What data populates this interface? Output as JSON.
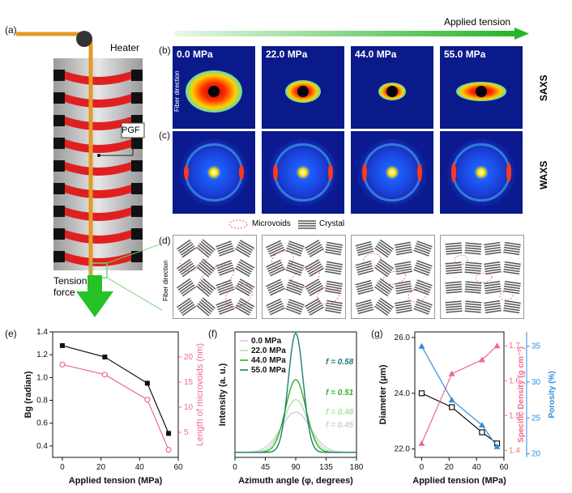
{
  "panels": {
    "a": "(a)",
    "b": "(b)",
    "c": "(c)",
    "d": "(d)",
    "e": "(e)",
    "f": "(f)",
    "g": "(g)"
  },
  "labels": {
    "heater": "Heater",
    "pgf": "PGF",
    "tension_force": "Tension\nforce",
    "applied_tension": "Applied tension",
    "saxs": "SAXS",
    "waxs": "WAXS",
    "fiber_direction": "Fiber direction",
    "microvoids": "Microvoids",
    "crystal": "Crystal"
  },
  "tensions": [
    "0.0 MPa",
    "22.0 MPa",
    "44.0 MPa",
    "55.0 MPa"
  ],
  "chart_data": [
    {
      "id": "e",
      "type": "line",
      "xlabel": "Applied tension (MPa)",
      "ylabel": "Bg (radian)",
      "ylabel_right": "Length of microvoids (nm)",
      "xlim": [
        -5,
        60
      ],
      "ylim": [
        0.3,
        1.4
      ],
      "ylim_right": [
        0,
        25
      ],
      "xticks": [
        "0",
        "20",
        "40",
        "60"
      ],
      "yticks": [
        "0.4",
        "0.6",
        "0.8",
        "1.0",
        "1.2",
        "1.4"
      ],
      "yticks_right": [
        "5",
        "10",
        "15",
        "20"
      ],
      "series": [
        {
          "axis": "left",
          "color": "#111111",
          "x": [
            0,
            22,
            44,
            55
          ],
          "y": [
            1.28,
            1.18,
            0.95,
            0.51
          ]
        },
        {
          "axis": "right",
          "color": "#f06a8a",
          "x": [
            0,
            22,
            44,
            55
          ],
          "y": [
            18.5,
            16.5,
            11.5,
            1.5
          ]
        }
      ]
    },
    {
      "id": "f",
      "type": "line",
      "xlabel": "Azimuth angle (φ, degrees)",
      "ylabel": "Intensity (a. u.)",
      "xlim": [
        0,
        180
      ],
      "xticks": [
        "0",
        "45",
        "90",
        "135",
        "180"
      ],
      "series": [
        {
          "name": "0.0 MPa",
          "color": "#cfcfcf",
          "peak": 0.32,
          "sigma": 22,
          "f": "f = 0.45"
        },
        {
          "name": "22.0 MPa",
          "color": "#a8e6a0",
          "peak": 0.42,
          "sigma": 18,
          "f": "f = 0.48"
        },
        {
          "name": "44.0 MPa",
          "color": "#2fb02f",
          "peak": 0.58,
          "sigma": 15,
          "f": "f = 0.51"
        },
        {
          "name": "55.0 MPa",
          "color": "#1f7a78",
          "peak": 0.95,
          "sigma": 11,
          "f": "f = 0.58"
        }
      ]
    },
    {
      "id": "g",
      "type": "line",
      "xlabel": "Applied tension (MPa)",
      "ylabel": "Diameter (μm)",
      "ylabel_mid": "Specific Density (g cm⁻³)",
      "ylabel_right": "Porosity (%)",
      "xlim": [
        -5,
        60
      ],
      "ylim": [
        21.7,
        26.2
      ],
      "ylim_mid": [
        1.38,
        1.74
      ],
      "ylim_right": [
        19.5,
        37
      ],
      "xticks": [
        "0",
        "20",
        "40",
        "60"
      ],
      "yticks": [
        "22.0",
        "24.0",
        "26.0"
      ],
      "yticks_mid": [
        "1.4",
        "1.5",
        "1.6",
        "1.7"
      ],
      "yticks_right": [
        "20",
        "25",
        "30",
        "35"
      ],
      "series": [
        {
          "axis": "left",
          "marker": "square",
          "color": "#111111",
          "x": [
            0,
            22,
            44,
            55
          ],
          "y": [
            24.0,
            23.5,
            22.6,
            22.2
          ]
        },
        {
          "axis": "mid",
          "marker": "triangle",
          "color": "#f06a8a",
          "x": [
            0,
            22,
            44,
            55
          ],
          "y": [
            1.42,
            1.62,
            1.66,
            1.7
          ]
        },
        {
          "axis": "right",
          "marker": "triangle",
          "color": "#2f8fe0",
          "x": [
            0,
            22,
            44,
            55
          ],
          "y": [
            35,
            27.5,
            24,
            21
          ]
        }
      ]
    }
  ]
}
